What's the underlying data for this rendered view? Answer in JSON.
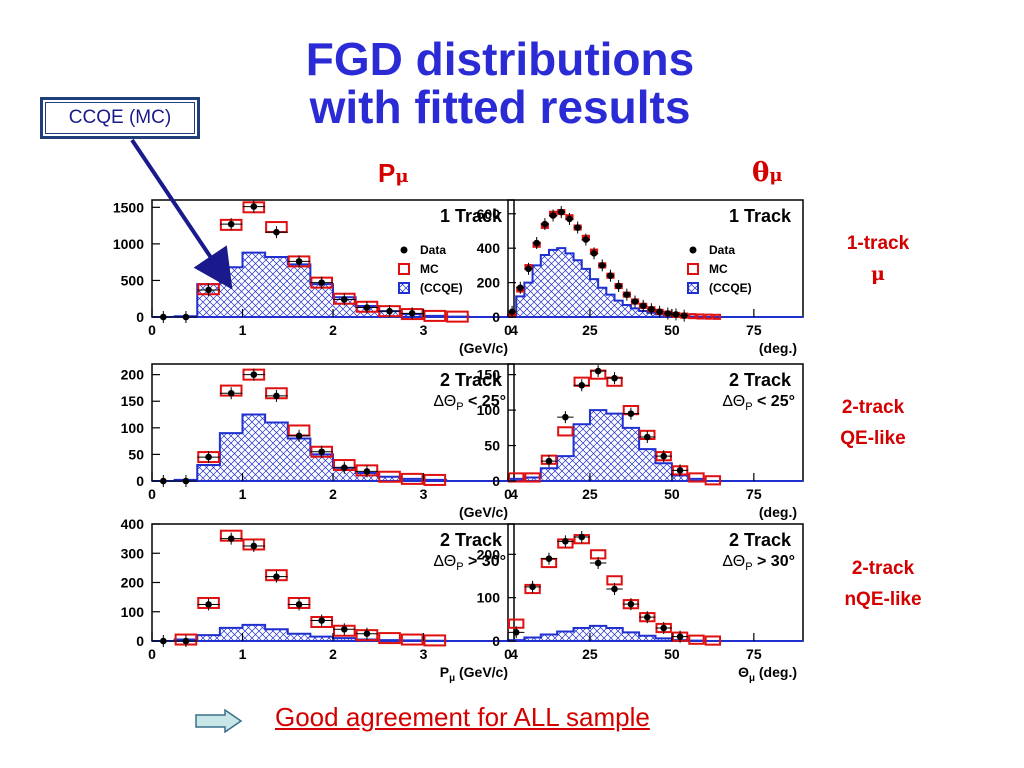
{
  "title_line1": "FGD distributions",
  "title_line2": "with fitted results",
  "callout": "CCQE (MC)",
  "col_heads": {
    "p": "P",
    "theta": "θ",
    "sub": "μ"
  },
  "row_labels": [
    {
      "line1": "1-track",
      "line2": "μ"
    },
    {
      "line1": "2-track",
      "line2": "QE-like"
    },
    {
      "line1": "2-track",
      "line2": "nQE-like"
    }
  ],
  "footer": "Good agreement for ALL sample",
  "colors": {
    "title": "#2b2bd6",
    "red": "#d40000",
    "mc": "#e01010",
    "ccqe": "#1f2fd0",
    "data": "#000000"
  },
  "chart_data": [
    {
      "id": "p1",
      "type": "bar",
      "title": "1 Track",
      "subtitle": "",
      "xlabel": "(GeV/c)",
      "xlim": [
        0,
        4
      ],
      "ylim": [
        0,
        1600
      ],
      "xticks": [
        0,
        1,
        2,
        3,
        4
      ],
      "yticks": [
        0,
        500,
        1000,
        1500
      ],
      "legend": [
        "Data",
        "MC",
        "(CCQE)"
      ],
      "bin_edges": [
        0,
        0.25,
        0.5,
        0.75,
        1,
        1.25,
        1.5,
        1.75,
        2,
        2.25,
        2.5,
        2.75,
        3,
        3.25,
        3.5,
        3.75,
        4
      ],
      "mc": [
        0,
        0,
        380,
        1260,
        1500,
        1230,
        760,
        470,
        250,
        140,
        80,
        40,
        15,
        5,
        0,
        0
      ],
      "data": [
        0,
        0,
        370,
        1270,
        1510,
        1160,
        760,
        470,
        240,
        130,
        80,
        50,
        null,
        null,
        null,
        null
      ],
      "ccqe": [
        0,
        10,
        450,
        680,
        880,
        820,
        720,
        450,
        270,
        150,
        80,
        40,
        15,
        5,
        0,
        0
      ]
    },
    {
      "id": "t1",
      "type": "bar",
      "title": "1 Track",
      "subtitle": "",
      "xlabel": "(deg.)",
      "xlim": [
        0,
        90
      ],
      "ylim": [
        0,
        680
      ],
      "xticks": [
        0,
        25,
        50,
        75
      ],
      "yticks": [
        0,
        200,
        400,
        600
      ],
      "legend": [
        "Data",
        "MC",
        "(CCQE)"
      ],
      "bin_edges": [
        0,
        2.5,
        5,
        7.5,
        10,
        12.5,
        15,
        17.5,
        20,
        22.5,
        25,
        27.5,
        30,
        32.5,
        35,
        37.5,
        40,
        42.5,
        45,
        47.5,
        50,
        52.5,
        55,
        57.5,
        60,
        62.5,
        65,
        67.5,
        70,
        72.5,
        75,
        77.5,
        80,
        82.5,
        85,
        87.5,
        90
      ],
      "mc": [
        20,
        160,
        290,
        420,
        530,
        600,
        610,
        580,
        520,
        460,
        380,
        300,
        240,
        180,
        130,
        90,
        65,
        45,
        30,
        20,
        12,
        8,
        5,
        3,
        2,
        1,
        0,
        0,
        0,
        0,
        0,
        0,
        0,
        0,
        0,
        0
      ],
      "data": [
        30,
        170,
        280,
        430,
        540,
        590,
        610,
        570,
        520,
        450,
        370,
        300,
        240,
        180,
        130,
        90,
        65,
        45,
        30,
        20,
        15,
        8,
        null,
        null,
        null,
        null,
        null,
        null,
        null,
        null,
        null,
        null,
        null,
        null,
        null,
        null
      ],
      "ccqe": [
        10,
        120,
        200,
        300,
        360,
        390,
        400,
        370,
        330,
        280,
        220,
        170,
        130,
        95,
        70,
        50,
        35,
        25,
        15,
        10,
        5,
        3,
        2,
        1,
        0,
        0,
        0,
        0,
        0,
        0,
        0,
        0,
        0,
        0,
        0,
        0
      ]
    },
    {
      "id": "p2",
      "type": "bar",
      "title": "2 Track",
      "subtitle": "ΔΘ_P < 25°",
      "xlabel": "(GeV/c)",
      "xlim": [
        0,
        4
      ],
      "ylim": [
        0,
        220
      ],
      "xticks": [
        0,
        1,
        2,
        3,
        4
      ],
      "yticks": [
        0,
        50,
        100,
        150,
        200
      ],
      "bin_edges": [
        0,
        0.25,
        0.5,
        0.75,
        1,
        1.25,
        1.5,
        1.75,
        2,
        2.25,
        2.5,
        2.75,
        3,
        3.25,
        3.5,
        3.75,
        4
      ],
      "mc": [
        0,
        0,
        45,
        170,
        200,
        165,
        95,
        55,
        30,
        20,
        8,
        4,
        2,
        0,
        0,
        0
      ],
      "data": [
        0,
        0,
        45,
        165,
        200,
        160,
        85,
        55,
        25,
        18,
        null,
        null,
        null,
        null,
        null,
        null
      ],
      "ccqe": [
        0,
        2,
        30,
        90,
        125,
        110,
        80,
        50,
        25,
        15,
        8,
        4,
        2,
        0,
        0,
        0
      ]
    },
    {
      "id": "t2",
      "type": "bar",
      "title": "2 Track",
      "subtitle": "ΔΘ_P < 25°",
      "xlabel": "(deg.)",
      "xlim": [
        0,
        90
      ],
      "ylim": [
        0,
        165
      ],
      "xticks": [
        0,
        25,
        50,
        75
      ],
      "yticks": [
        0,
        50,
        100,
        150
      ],
      "bin_edges": [
        0,
        5,
        10,
        15,
        20,
        25,
        30,
        35,
        40,
        45,
        50,
        55,
        60,
        65,
        70,
        75,
        80,
        85,
        90
      ],
      "mc": [
        5,
        5,
        30,
        70,
        140,
        150,
        140,
        100,
        65,
        35,
        15,
        5,
        1,
        0,
        0,
        0,
        0,
        0
      ],
      "data": [
        null,
        null,
        28,
        90,
        135,
        155,
        145,
        95,
        62,
        35,
        15,
        null,
        null,
        null,
        null,
        null,
        null,
        null
      ],
      "ccqe": [
        3,
        5,
        18,
        35,
        80,
        100,
        95,
        75,
        45,
        25,
        8,
        3,
        0,
        0,
        0,
        0,
        0,
        0
      ]
    },
    {
      "id": "p3",
      "type": "bar",
      "title": "2 Track",
      "subtitle": "ΔΘ_P > 30°",
      "xlabel": "P_μ (GeV/c)",
      "xlim": [
        0,
        4
      ],
      "ylim": [
        0,
        400
      ],
      "xticks": [
        0,
        1,
        2,
        3,
        4
      ],
      "yticks": [
        0,
        100,
        200,
        300,
        400
      ],
      "bin_edges": [
        0,
        0.25,
        0.5,
        0.75,
        1,
        1.25,
        1.5,
        1.75,
        2,
        2.25,
        2.5,
        2.75,
        3,
        3.25,
        3.5,
        3.75,
        4
      ],
      "mc": [
        0,
        5,
        130,
        360,
        330,
        225,
        130,
        65,
        35,
        20,
        10,
        5,
        2,
        0,
        0,
        0
      ],
      "data": [
        0,
        0,
        125,
        350,
        325,
        220,
        125,
        70,
        40,
        25,
        null,
        null,
        null,
        null,
        null,
        null
      ],
      "ccqe": [
        0,
        5,
        20,
        45,
        55,
        40,
        25,
        15,
        10,
        5,
        3,
        2,
        1,
        0,
        0,
        0
      ]
    },
    {
      "id": "t3",
      "type": "bar",
      "title": "2 Track",
      "subtitle": "ΔΘ_P > 30°",
      "xlabel": "Θ_μ (deg.)",
      "xlim": [
        0,
        90
      ],
      "ylim": [
        0,
        270
      ],
      "xticks": [
        0,
        25,
        50,
        75
      ],
      "yticks": [
        0,
        100,
        200
      ],
      "bin_edges": [
        0,
        5,
        10,
        15,
        20,
        25,
        30,
        35,
        40,
        45,
        50,
        55,
        60,
        65,
        70,
        75,
        80,
        85,
        90
      ],
      "mc": [
        40,
        120,
        180,
        225,
        235,
        200,
        140,
        85,
        55,
        30,
        10,
        3,
        1,
        0,
        0,
        0,
        0,
        0
      ],
      "data": [
        20,
        125,
        190,
        230,
        240,
        180,
        120,
        85,
        55,
        30,
        10,
        null,
        null,
        null,
        null,
        null,
        null,
        null
      ],
      "ccqe": [
        2,
        8,
        15,
        22,
        30,
        35,
        30,
        20,
        12,
        6,
        2,
        1,
        0,
        0,
        0,
        0,
        0,
        0
      ]
    }
  ]
}
